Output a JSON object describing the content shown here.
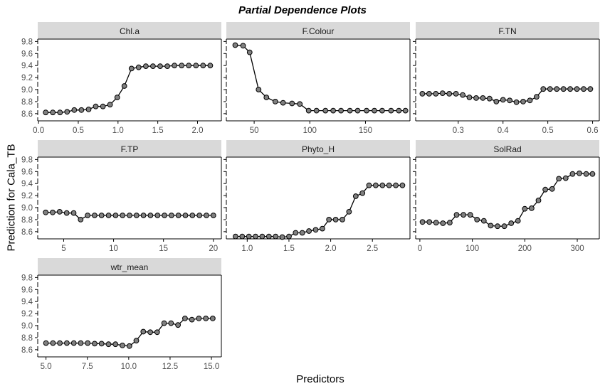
{
  "chart_data": {
    "type": "line",
    "title": "Partial Dependence Plots",
    "xlabel": "Predictors",
    "ylabel": "Prediction for Cala_TB",
    "ylim": [
      8.48,
      9.84
    ],
    "yticks": [
      8.6,
      8.8,
      9.0,
      9.2,
      9.4,
      9.6,
      9.8
    ],
    "ytick_labels": [
      "8.6",
      "8.8",
      "9.0",
      "9.2",
      "9.4",
      "9.6",
      "9.8"
    ],
    "colors": {
      "strip_bg": "#d9d9d9",
      "point_fill": "#808080",
      "line": "#000000",
      "axis": "#000000",
      "tick_text": "#4d4d4d"
    },
    "panels": [
      {
        "name": "Chl.a",
        "xlim": [
          -0.01,
          2.3
        ],
        "xticks": [
          0.0,
          0.5,
          1.0,
          1.5,
          2.0
        ],
        "xtick_labels": [
          "0.0",
          "0.5",
          "1.0",
          "1.5",
          "2.0"
        ],
        "x": [
          0.09,
          0.18,
          0.27,
          0.36,
          0.45,
          0.54,
          0.63,
          0.72,
          0.81,
          0.9,
          0.99,
          1.08,
          1.17,
          1.26,
          1.35,
          1.44,
          1.53,
          1.62,
          1.71,
          1.8,
          1.89,
          1.98,
          2.07,
          2.16
        ],
        "y": [
          8.62,
          8.62,
          8.62,
          8.63,
          8.66,
          8.66,
          8.67,
          8.72,
          8.72,
          8.75,
          8.87,
          9.06,
          9.35,
          9.37,
          9.39,
          9.39,
          9.39,
          9.39,
          9.4,
          9.4,
          9.4,
          9.4,
          9.4,
          9.4
        ]
      },
      {
        "name": "F.Colour",
        "xlim": [
          25,
          190
        ],
        "xticks": [
          50,
          100,
          150
        ],
        "xtick_labels": [
          "50",
          "100",
          "150"
        ],
        "x": [
          33,
          40,
          46,
          54,
          61,
          69,
          76,
          84,
          91,
          99,
          106,
          114,
          121,
          128,
          136,
          143,
          151,
          158,
          165,
          173,
          180,
          186
        ],
        "y": [
          9.74,
          9.73,
          9.62,
          9.0,
          8.87,
          8.8,
          8.78,
          8.77,
          8.76,
          8.65,
          8.65,
          8.65,
          8.65,
          8.65,
          8.65,
          8.65,
          8.65,
          8.65,
          8.65,
          8.65,
          8.65,
          8.65
        ]
      },
      {
        "name": "F.TN",
        "xlim": [
          0.205,
          0.615
        ],
        "xticks": [
          0.3,
          0.4,
          0.5,
          0.6
        ],
        "xtick_labels": [
          "0.3",
          "0.4",
          "0.5",
          "0.6"
        ],
        "x": [
          0.22,
          0.235,
          0.25,
          0.265,
          0.28,
          0.295,
          0.31,
          0.325,
          0.34,
          0.355,
          0.37,
          0.385,
          0.4,
          0.415,
          0.43,
          0.445,
          0.46,
          0.475,
          0.49,
          0.505,
          0.52,
          0.535,
          0.55,
          0.565,
          0.58,
          0.595
        ],
        "y": [
          8.93,
          8.93,
          8.93,
          8.94,
          8.93,
          8.93,
          8.91,
          8.87,
          8.86,
          8.86,
          8.85,
          8.8,
          8.83,
          8.82,
          8.79,
          8.8,
          8.82,
          8.88,
          9.01,
          9.01,
          9.01,
          9.01,
          9.01,
          9.01,
          9.01,
          9.01
        ]
      },
      {
        "name": "F.TP",
        "xlim": [
          2.4,
          20.8
        ],
        "xticks": [
          5,
          10,
          15,
          20
        ],
        "xtick_labels": [
          "5",
          "10",
          "15",
          "20"
        ],
        "x": [
          3.2,
          3.9,
          4.6,
          5.3,
          6.0,
          6.7,
          7.4,
          8.1,
          8.8,
          9.5,
          10.2,
          10.9,
          11.6,
          12.3,
          13.0,
          13.7,
          14.4,
          15.1,
          15.8,
          16.5,
          17.2,
          17.9,
          18.6,
          19.3,
          20.0
        ],
        "y": [
          8.92,
          8.92,
          8.93,
          8.91,
          8.91,
          8.8,
          8.87,
          8.87,
          8.87,
          8.87,
          8.87,
          8.87,
          8.87,
          8.87,
          8.87,
          8.87,
          8.87,
          8.87,
          8.87,
          8.87,
          8.87,
          8.87,
          8.87,
          8.87,
          8.87
        ]
      },
      {
        "name": "Phyto_H",
        "xlim": [
          0.75,
          2.95
        ],
        "xticks": [
          1.0,
          1.5,
          2.0,
          2.5
        ],
        "xtick_labels": [
          "1.0",
          "1.5",
          "2.0",
          "2.5"
        ],
        "x": [
          0.86,
          0.94,
          1.02,
          1.1,
          1.18,
          1.26,
          1.34,
          1.42,
          1.5,
          1.58,
          1.66,
          1.74,
          1.82,
          1.9,
          1.98,
          2.06,
          2.14,
          2.22,
          2.3,
          2.38,
          2.46,
          2.54,
          2.62,
          2.7,
          2.78,
          2.86
        ],
        "y": [
          8.52,
          8.52,
          8.52,
          8.52,
          8.52,
          8.52,
          8.52,
          8.51,
          8.52,
          8.58,
          8.58,
          8.61,
          8.63,
          8.65,
          8.8,
          8.8,
          8.8,
          8.93,
          9.19,
          9.24,
          9.37,
          9.37,
          9.37,
          9.37,
          9.37,
          9.37
        ]
      },
      {
        "name": "SolRad",
        "xlim": [
          -8,
          342
        ],
        "xticks": [
          0,
          100,
          200,
          300
        ],
        "xtick_labels": [
          "0",
          "100",
          "200",
          "300"
        ],
        "x": [
          5,
          18,
          31,
          44,
          57,
          70,
          83,
          96,
          109,
          122,
          135,
          148,
          161,
          174,
          187,
          200,
          213,
          226,
          239,
          252,
          265,
          278,
          291,
          304,
          317,
          329
        ],
        "y": [
          8.76,
          8.76,
          8.75,
          8.74,
          8.75,
          8.88,
          8.88,
          8.88,
          8.8,
          8.78,
          8.7,
          8.69,
          8.69,
          8.74,
          8.78,
          8.98,
          8.99,
          9.12,
          9.3,
          9.31,
          9.48,
          9.49,
          9.56,
          9.57,
          9.56,
          9.56
        ]
      },
      {
        "name": "wtr_mean",
        "xlim": [
          4.5,
          15.6
        ],
        "xticks": [
          5.0,
          7.5,
          10.0,
          12.5,
          15.0
        ],
        "xtick_labels": [
          "5.0",
          "7.5",
          "10.0",
          "12.5",
          "15.0"
        ],
        "x": [
          5.0,
          5.42,
          5.84,
          6.26,
          6.68,
          7.1,
          7.52,
          7.94,
          8.36,
          8.78,
          9.2,
          9.62,
          10.04,
          10.46,
          10.88,
          11.3,
          11.72,
          12.14,
          12.56,
          12.98,
          13.4,
          13.82,
          14.24,
          14.66,
          15.08
        ],
        "y": [
          8.71,
          8.71,
          8.71,
          8.71,
          8.71,
          8.71,
          8.71,
          8.7,
          8.7,
          8.69,
          8.69,
          8.67,
          8.66,
          8.75,
          8.9,
          8.89,
          8.89,
          9.04,
          9.04,
          9.01,
          9.12,
          9.1,
          9.12,
          9.12,
          9.12
        ]
      }
    ]
  }
}
